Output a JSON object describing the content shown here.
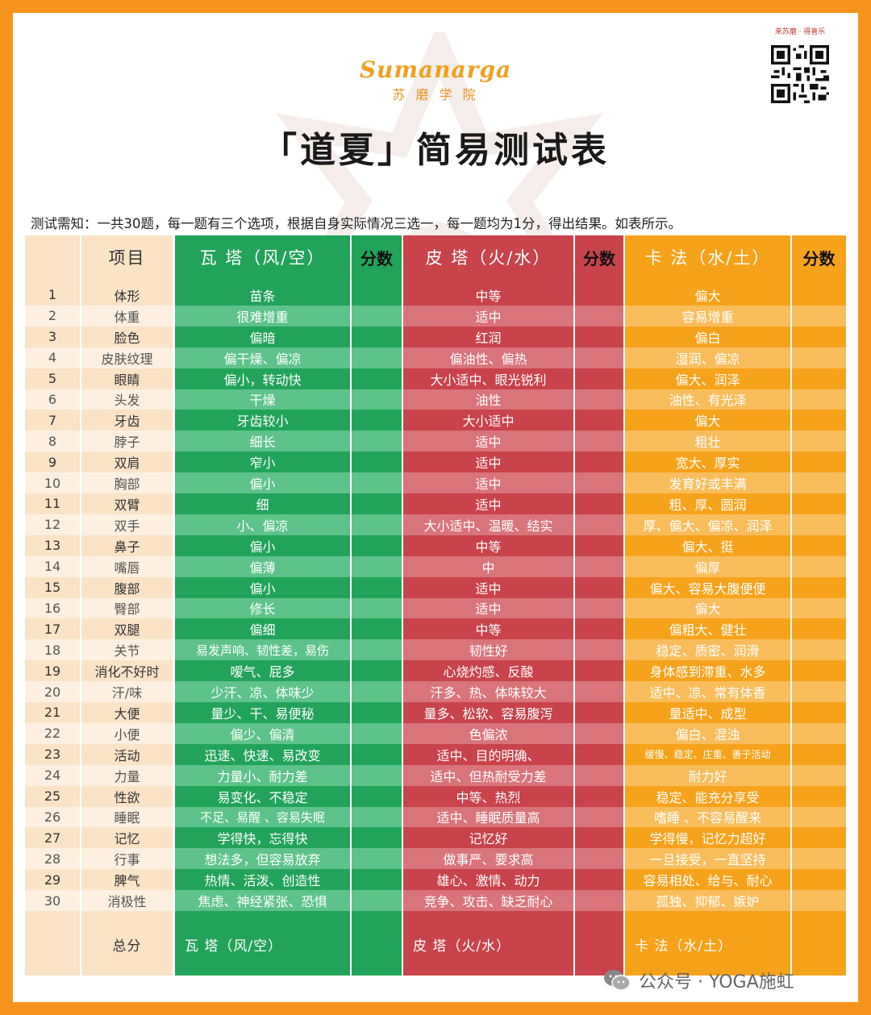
{
  "brand": {
    "script_name": "Sumanarga",
    "cn_name": "苏 磨 学 院",
    "qr_caption": "来苏磨 · 得喜乐"
  },
  "title": "「道夏」简易测试表",
  "notice": "测试需知：一共30题，每一题有三个选项，根据自身实际情况三选一，每一题均为1分，得出结果。如表所示。",
  "table": {
    "headers": {
      "item": "项目",
      "vata": "瓦 塔（风/空）",
      "pitta": "皮 塔（火/水）",
      "kapha": "卡 法（水/土）",
      "score": "分数"
    },
    "rows": [
      {
        "num": "1",
        "item": "体形",
        "vata": "苗条",
        "pitta": "中等",
        "kapha": "偏大"
      },
      {
        "num": "2",
        "item": "体重",
        "vata": "很难增重",
        "pitta": "适中",
        "kapha": "容易增重"
      },
      {
        "num": "3",
        "item": "脸色",
        "vata": "偏暗",
        "pitta": "红润",
        "kapha": "偏白"
      },
      {
        "num": "4",
        "item": "皮肤纹理",
        "vata": "偏干燥、偏凉",
        "pitta": "偏油性、偏热",
        "kapha": "湿润、偏凉"
      },
      {
        "num": "5",
        "item": "眼睛",
        "vata": "偏小，转动快",
        "pitta": "大小适中、眼光锐利",
        "kapha": "偏大、润泽"
      },
      {
        "num": "6",
        "item": "头发",
        "vata": "干燥",
        "pitta": "油性",
        "kapha": "油性、有光泽"
      },
      {
        "num": "7",
        "item": "牙齿",
        "vata": "牙齿较小",
        "pitta": "大小适中",
        "kapha": "偏大"
      },
      {
        "num": "8",
        "item": "脖子",
        "vata": "细长",
        "pitta": "适中",
        "kapha": "粗壮"
      },
      {
        "num": "9",
        "item": "双肩",
        "vata": "窄小",
        "pitta": "适中",
        "kapha": "宽大、厚实"
      },
      {
        "num": "10",
        "item": "胸部",
        "vata": "偏小",
        "pitta": "适中",
        "kapha": "发育好或丰满"
      },
      {
        "num": "11",
        "item": "双臂",
        "vata": "细",
        "pitta": "适中",
        "kapha": "粗、厚、圆润"
      },
      {
        "num": "12",
        "item": "双手",
        "vata": "小、偏凉",
        "pitta": "大小适中、温暖、结实",
        "kapha": "厚、偏大、偏凉、润泽"
      },
      {
        "num": "13",
        "item": "鼻子",
        "vata": "偏小",
        "pitta": "中等",
        "kapha": "偏大、挺"
      },
      {
        "num": "14",
        "item": "嘴唇",
        "vata": "偏薄",
        "pitta": "中",
        "kapha": "偏厚"
      },
      {
        "num": "15",
        "item": "腹部",
        "vata": "偏小",
        "pitta": "适中",
        "kapha": "偏大、容易大腹便便"
      },
      {
        "num": "16",
        "item": "臀部",
        "vata": "修长",
        "pitta": "适中",
        "kapha": "偏大"
      },
      {
        "num": "17",
        "item": "双腿",
        "vata": "偏细",
        "pitta": "中等",
        "kapha": "偏粗大、健壮"
      },
      {
        "num": "18",
        "item": "关节",
        "vata": "易发声响、韧性差，易伤",
        "pitta": "韧性好",
        "kapha": "稳定、质密、润滑"
      },
      {
        "num": "19",
        "item": "消化不好时",
        "vata": "嗳气、屁多",
        "pitta": "心烧灼感、反酸",
        "kapha": "身体感到滞重、水多"
      },
      {
        "num": "20",
        "item": "汗/味",
        "vata": "少汗、凉、体味少",
        "pitta": "汗多、热、体味较大",
        "kapha": "适中、凉、常有体香"
      },
      {
        "num": "21",
        "item": "大便",
        "vata": "量少、干、易便秘",
        "pitta": "量多、松软、容易腹泻",
        "kapha": "量适中、成型"
      },
      {
        "num": "22",
        "item": "小便",
        "vata": "偏少、偏清",
        "pitta": "色偏浓",
        "kapha": "偏白、混浊"
      },
      {
        "num": "23",
        "item": "活动",
        "vata": "迅速、快速、易改变",
        "pitta": "适中、目的明确、",
        "kapha": "缓慢、稳定、庄重、善于活动"
      },
      {
        "num": "24",
        "item": "力量",
        "vata": "力量小、耐力差",
        "pitta": "适中、但热耐受力差",
        "kapha": "耐力好"
      },
      {
        "num": "25",
        "item": "性欲",
        "vata": "易变化、不稳定",
        "pitta": "中等、热烈",
        "kapha": "稳定、能充分享受"
      },
      {
        "num": "26",
        "item": "睡眠",
        "vata": "不足、易醒 、容易失眠",
        "pitta": "适中、睡眠质量高",
        "kapha": "嗜睡 、不容易醒来"
      },
      {
        "num": "27",
        "item": "记忆",
        "vata": "学得快，忘得快",
        "pitta": "记忆好",
        "kapha": "学得慢，记忆力超好"
      },
      {
        "num": "28",
        "item": "行事",
        "vata": "想法多，但容易放弃",
        "pitta": "做事严、要求高",
        "kapha": "一旦接受，一直坚持"
      },
      {
        "num": "29",
        "item": "脾气",
        "vata": "热情、活泼、创造性",
        "pitta": "雄心、激情、动力",
        "kapha": "容易相处、给与、耐心"
      },
      {
        "num": "30",
        "item": "消极性",
        "vata": "焦虑、神经紧张、恐惧",
        "pitta": "竞争、攻击、缺乏耐心",
        "kapha": "孤独、抑郁、嫉妒"
      }
    ],
    "total": {
      "label": "总分",
      "vata": "瓦 塔（风/空）",
      "pitta": "皮 塔（火/水）",
      "kapha": "卡 法（水/土）"
    }
  },
  "watermark": "公众号 · YOGA施虹",
  "colors": {
    "frame": "#f7941d",
    "vata": "#22a35a",
    "pitta": "#c8434a",
    "kapha": "#f7a21b",
    "item_bg": "#fbe3c6"
  }
}
